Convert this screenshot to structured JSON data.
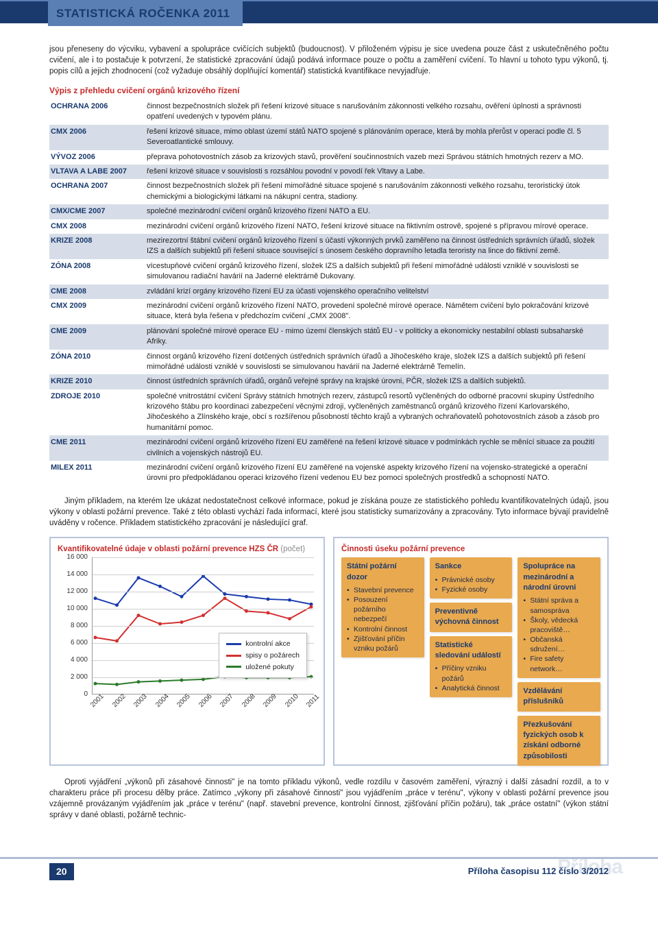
{
  "header": {
    "title": "STATISTICKÁ ROČENKA 2011"
  },
  "intro": "jsou přeneseny do výcviku, vybavení a spolupráce cvičících subjektů (budoucnost). V přiloženém výpisu je sice uvedena pouze část z uskutečněného počtu cvičení, ale i to postačuje k potvrzení, že statistické zpracování údajů podává informace pouze o počtu a zaměření cvičení. To hlavní u tohoto typu výkonů, tj. popis cílů a jejich zhodnocení (což vyžaduje obsáhlý doplňující komentář) statistická kvantifikace nevyjadřuje.",
  "table_title": "Výpis z přehledu cvičení orgánů krizového řízení",
  "exercises": [
    {
      "name": "OCHRANA 2006",
      "desc": "činnost bezpečnostních složek při řešení krizové situace s narušováním zákonnosti velkého rozsahu, ověření úplnosti a správnosti opatření uvedených v typovém plánu.",
      "alt": false
    },
    {
      "name": "CMX 2006",
      "desc": "řešení krizové situace, mimo oblast území států NATO spojené s plánováním operace, která by mohla přerůst v operaci podle čl. 5 Severoatlantické smlouvy.",
      "alt": true
    },
    {
      "name": "VÝVOZ 2006",
      "desc": "přeprava pohotovostních zásob za krizových stavů, prověření součinnostních vazeb mezi Správou státních hmotných rezerv a MO.",
      "alt": false
    },
    {
      "name": "VLTAVA A LABE 2007",
      "desc": "řešení krizové situace v souvislosti s rozsáhlou povodní v povodí řek Vltavy a Labe.",
      "alt": true
    },
    {
      "name": "OCHRANA 2007",
      "desc": "činnost bezpečnostních složek při řešení mimořádné situace spojené s narušováním zákonnosti velkého rozsahu, teroristický útok chemickými a biologickými látkami na nákupní centra, stadiony.",
      "alt": false
    },
    {
      "name": "CMX/CME 2007",
      "desc": "společné mezinárodní cvičení orgánů krizového řízení NATO a EU.",
      "alt": true
    },
    {
      "name": "CMX 2008",
      "desc": "mezinárodní cvičení orgánů krizového řízení NATO, řešení krizové situace na fiktivním ostrově, spojené s přípravou mírové operace.",
      "alt": false
    },
    {
      "name": "KRIZE 2008",
      "desc": "mezirezortní štábní cvičení orgánů krizového řízení s účastí výkonných prvků zaměřeno na činnost ústředních správních úřadů, složek IZS a dalších subjektů při řešení situace související s únosem českého dopravního letadla teroristy na lince do fiktivní země.",
      "alt": true
    },
    {
      "name": "ZÓNA 2008",
      "desc": "vícestupňové cvičení orgánů krizového řízení, složek IZS a dalších subjektů při řešení mimořádné události vzniklé v souvislosti se simulovanou radiační havárií na Jaderné elektrárně Dukovany.",
      "alt": false
    },
    {
      "name": "CME 2008",
      "desc": "zvládání krizí orgány krizového řízení EU za účasti vojenského operačního velitelství",
      "alt": true
    },
    {
      "name": "CMX 2009",
      "desc": "mezinárodní cvičení orgánů krizového řízení NATO, provedení společné mírové operace. Námětem cvičení bylo pokračování krizové situace, která byla řešena v předchozím cvičení „CMX 2008\".",
      "alt": false
    },
    {
      "name": "CME 2009",
      "desc": "plánování společné mírové operace EU - mimo území členských států EU - v politicky a ekonomicky nestabilní oblasti subsaharské Afriky.",
      "alt": true
    },
    {
      "name": "ZÓNA 2010",
      "desc": "činnost orgánů krizového řízení dotčených ústředních správních úřadů a Jihočeského kraje, složek IZS a dalších subjektů při řešení mimořádné události vzniklé v souvislosti se simulovanou havárií na Jaderné elektrárně Temelín.",
      "alt": false
    },
    {
      "name": "KRIZE 2010",
      "desc": "činnost ústředních správních úřadů, orgánů veřejné správy na krajské úrovni, PČR, složek IZS a dalších subjektů.",
      "alt": true
    },
    {
      "name": "ZDROJE 2010",
      "desc": "společné vnitrostátní cvičení Správy státních hmotných rezerv, zástupců resortů vyčleněných do odborné pracovní skupiny Ústředního krizového štábu pro koordinaci zabezpečení věcnými zdroji, vyčleněných zaměstnanců orgánů krizového řízení Karlovarského, Jihočeského a Zlínského kraje, obcí s rozšířenou působností těchto krajů a vybraných ochraňovatelů pohotovostních zásob a zásob pro humanitární pomoc.",
      "alt": false
    },
    {
      "name": "CME 2011",
      "desc": "mezinárodní cvičení orgánů krizového řízení EU zaměřené na řešení krizové situace v podmínkách rychle se měnící situace za použití civilních a vojenských nástrojů EU.",
      "alt": true
    },
    {
      "name": "MILEX 2011",
      "desc": "mezinárodní cvičení orgánů krizového řízení EU zaměřené na vojenské aspekty krizového řízení na vojensko-strategické a operační úrovni pro předpokládanou operaci krizového řízení vedenou EU bez pomoci společných prostředků a schopností NATO.",
      "alt": false
    }
  ],
  "mid_para": "Jiným příkladem, na kterém lze ukázat nedostatečnost celkové informace, pokud je získána pouze ze statistického pohledu kvantifikovatelných údajů, jsou výkony v oblasti požární prevence. Také z této oblasti vychází řada informací, které jsou statisticky sumarizovány a zpracovány. Tyto informace bývají pravidelně uváděny v ročence. Příkladem statistického zpracování je následující graf.",
  "chart": {
    "title": "Kvantifikovatelné údaje v oblasti požární prevence HZS ČR",
    "title_sub": "(počet)",
    "ymax": 16000,
    "ymin": 0,
    "ystep": 2000,
    "yticks": [
      16000,
      14000,
      12000,
      10000,
      8000,
      6000,
      4000,
      2000,
      0
    ],
    "years": [
      "2001",
      "2002",
      "2003",
      "2004",
      "2005",
      "2006",
      "2007",
      "2008",
      "2009",
      "2010",
      "2011"
    ],
    "series": [
      {
        "name": "kontrolní akce",
        "color": "#1a3aae",
        "values": [
          11200,
          10400,
          13600,
          12600,
          11400,
          13800,
          11700,
          11400,
          11100,
          11000,
          10500
        ]
      },
      {
        "name": "spisy o požárech",
        "color": "#d32f2f",
        "values": [
          6600,
          6200,
          9200,
          8200,
          8400,
          9200,
          11200,
          9700,
          9500,
          8800,
          10200
        ]
      },
      {
        "name": "uložené pokuty",
        "color": "#2a7a2a",
        "values": [
          1200,
          1100,
          1400,
          1500,
          1600,
          1700,
          2000,
          1900,
          1900,
          1900,
          2000
        ]
      }
    ],
    "grid_color": "#d0d0d0",
    "axis_color": "#999999",
    "background": "#ffffff",
    "line_width": 2
  },
  "activities": {
    "title": "Činnosti úseku požární prevence",
    "cols": [
      [
        {
          "title": "Státní požární dozor",
          "items": [
            "Stavební prevence",
            "Posouzení požárního nebezpečí",
            "Kontrolní činnost",
            "Zjišťování příčin vzniku požárů"
          ]
        }
      ],
      [
        {
          "title": "Sankce",
          "items": [
            "Právnické osoby",
            "Fyzické osoby"
          ]
        },
        {
          "title": "Preventivně výchovná činnost",
          "items": []
        },
        {
          "title": "Statistické sledování událostí",
          "items": [
            "Příčiny vzniku požárů",
            "Analytická činnost"
          ]
        }
      ],
      [
        {
          "title": "Spolupráce na mezinárodní a národní úrovni",
          "items": [
            "Státní správa a samospráva",
            "Školy, vědecká pracoviště…",
            "Občanská sdružení…",
            "Fire safety network…"
          ]
        },
        {
          "title": "Vzdělávání příslušníků",
          "items": []
        },
        {
          "title": "Přezkušování fyzických osob k získání odborné způsobilosti",
          "items": []
        }
      ]
    ]
  },
  "end_para": "Oproti vyjádření „výkonů při zásahové činnosti\" je na tomto příkladu výkonů, vedle rozdílu v časovém zaměření, výrazný i další zásadní rozdíl, a to v charakteru práce při procesu dělby práce. Zatímco „výkony při zásahové činnosti\" jsou vyjádřením „práce v terénu\", výkony v oblasti požární prevence jsou vzájemně provázaným vyjádřením jak „práce v terénu\" (např. stavební prevence, kontrolní činnost, zjišťování příčin požáru), tak „práce ostatní\" (výkon státní správy v dané oblasti, požárně technic-",
  "footer": {
    "page": "20",
    "ghost": "Příloha",
    "right": "Příloha časopisu 112 číslo 3/2012"
  }
}
